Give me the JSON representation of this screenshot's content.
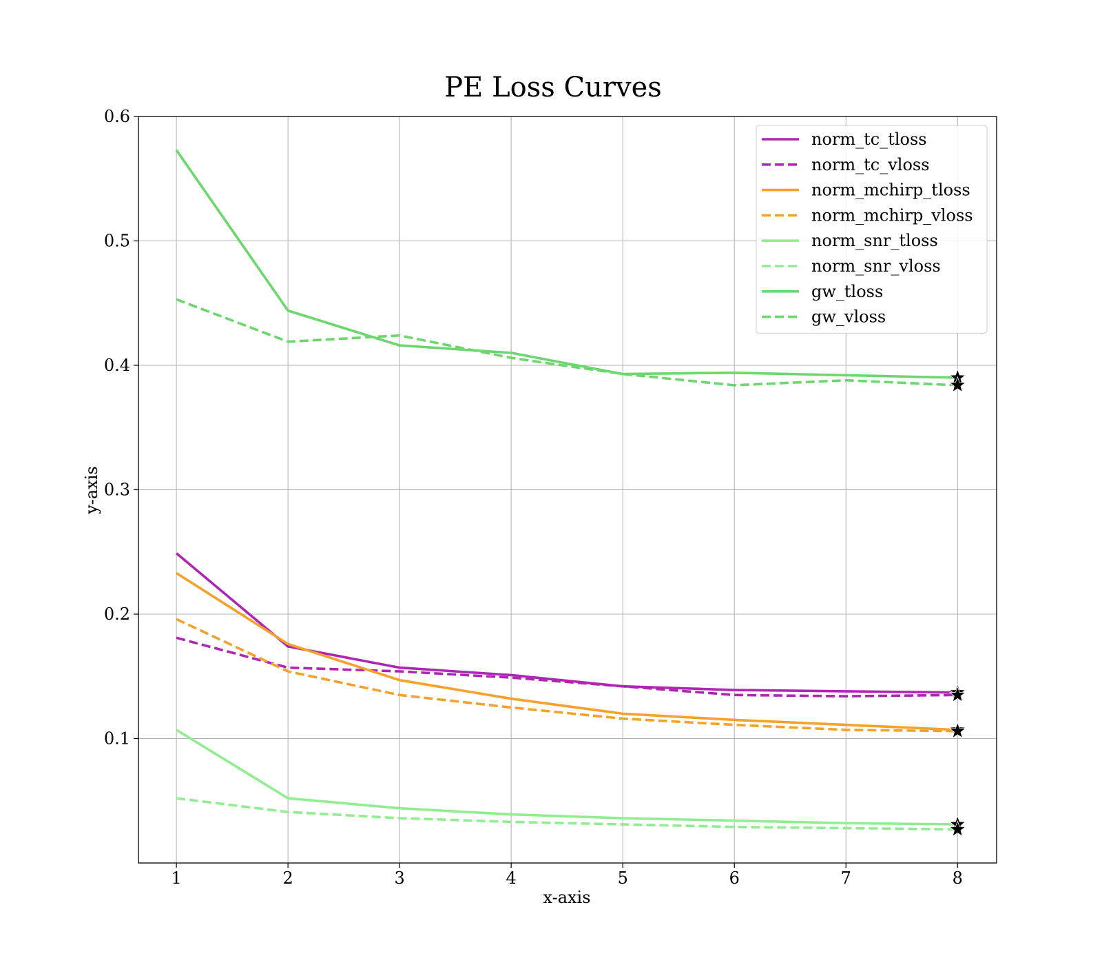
{
  "chart_data": {
    "type": "line",
    "title": "PE Loss Curves",
    "xlabel": "x-axis",
    "ylabel": "y-axis",
    "xlim": [
      0.66,
      8.35
    ],
    "ylim": [
      0.0,
      0.6
    ],
    "x": [
      1,
      2,
      3,
      4,
      5,
      6,
      7,
      8
    ],
    "xticks": [
      "1",
      "2",
      "3",
      "4",
      "5",
      "6",
      "7",
      "8"
    ],
    "yticks": [
      0.1,
      0.2,
      0.3,
      0.4,
      0.5,
      0.6
    ],
    "ytick_labels": [
      "0.1",
      "0.2",
      "0.3",
      "0.4",
      "0.5",
      "0.6"
    ],
    "grid": true,
    "legend_position": "top-right",
    "end_marker": "star",
    "series": [
      {
        "name": "norm_tc_tloss",
        "color": "#b026b4",
        "dash": "solid",
        "values": [
          0.249,
          0.174,
          0.157,
          0.151,
          0.142,
          0.139,
          0.138,
          0.137
        ]
      },
      {
        "name": "norm_tc_vloss",
        "color": "#b026b4",
        "dash": "dashed",
        "values": [
          0.181,
          0.157,
          0.154,
          0.149,
          0.142,
          0.135,
          0.134,
          0.135
        ]
      },
      {
        "name": "norm_mchirp_tloss",
        "color": "#f5a22a",
        "dash": "solid",
        "values": [
          0.233,
          0.176,
          0.147,
          0.132,
          0.12,
          0.115,
          0.111,
          0.107
        ]
      },
      {
        "name": "norm_mchirp_vloss",
        "color": "#f5a22a",
        "dash": "dashed",
        "values": [
          0.196,
          0.154,
          0.135,
          0.125,
          0.116,
          0.111,
          0.107,
          0.106
        ]
      },
      {
        "name": "norm_snr_tloss",
        "color": "#90ee90",
        "dash": "solid",
        "values": [
          0.107,
          0.052,
          0.044,
          0.039,
          0.036,
          0.034,
          0.032,
          0.031
        ]
      },
      {
        "name": "norm_snr_vloss",
        "color": "#90ee90",
        "dash": "dashed",
        "values": [
          0.052,
          0.041,
          0.036,
          0.033,
          0.031,
          0.029,
          0.028,
          0.027
        ]
      },
      {
        "name": "gw_tloss",
        "color": "#6cd76c",
        "dash": "solid",
        "values": [
          0.573,
          0.444,
          0.416,
          0.41,
          0.393,
          0.394,
          0.392,
          0.39
        ]
      },
      {
        "name": "gw_vloss",
        "color": "#6cd76c",
        "dash": "dashed",
        "values": [
          0.453,
          0.419,
          0.424,
          0.406,
          0.393,
          0.384,
          0.388,
          0.384
        ]
      }
    ]
  }
}
